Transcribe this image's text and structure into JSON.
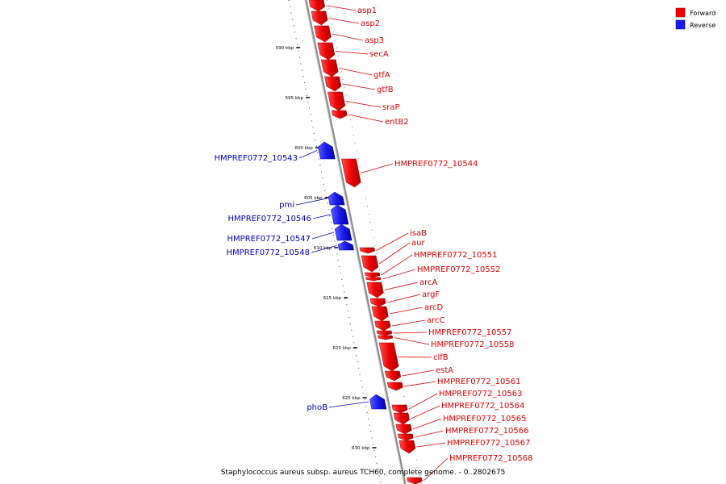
{
  "legend": {
    "forward_label": "Forward",
    "reverse_label": "Reverse",
    "forward_color": "#ee0000",
    "reverse_color": "#1a1aee"
  },
  "caption": "Staphylococcus aureus subsp. aureus TCH60, complete genome. - 0..2802675",
  "ticks": [
    "590 kbp",
    "595 kbp",
    "600 kbp",
    "605 kbp",
    "610 kbp",
    "615 kbp",
    "620 kbp",
    "625 kbp",
    "630 kbp"
  ],
  "genes": [
    {
      "name": "asp1",
      "strand": "forward"
    },
    {
      "name": "asp2",
      "strand": "forward"
    },
    {
      "name": "asp3",
      "strand": "forward"
    },
    {
      "name": "secA",
      "strand": "forward"
    },
    {
      "name": "gtfA",
      "strand": "forward"
    },
    {
      "name": "gtfB",
      "strand": "forward"
    },
    {
      "name": "sraP",
      "strand": "forward"
    },
    {
      "name": "entB2",
      "strand": "forward"
    },
    {
      "name": "HMPREF0772_10543",
      "strand": "reverse"
    },
    {
      "name": "HMPREF0772_10544",
      "strand": "forward"
    },
    {
      "name": "pmi",
      "strand": "reverse"
    },
    {
      "name": "HMPREF0772_10546",
      "strand": "reverse"
    },
    {
      "name": "HMPREF0772_10547",
      "strand": "reverse"
    },
    {
      "name": "HMPREF0772_10548",
      "strand": "reverse"
    },
    {
      "name": "isaB",
      "strand": "forward"
    },
    {
      "name": "aur",
      "strand": "forward"
    },
    {
      "name": "HMPREF0772_10551",
      "strand": "forward"
    },
    {
      "name": "HMPREF0772_10552",
      "strand": "forward"
    },
    {
      "name": "arcA",
      "strand": "forward"
    },
    {
      "name": "argF",
      "strand": "forward"
    },
    {
      "name": "arcD",
      "strand": "forward"
    },
    {
      "name": "arcC",
      "strand": "forward"
    },
    {
      "name": "HMPREF0772_10557",
      "strand": "forward"
    },
    {
      "name": "HMPREF0772_10558",
      "strand": "forward"
    },
    {
      "name": "clfB",
      "strand": "forward"
    },
    {
      "name": "estA",
      "strand": "forward"
    },
    {
      "name": "HMPREF0772_10561",
      "strand": "forward"
    },
    {
      "name": "HMPREF0772_10563",
      "strand": "forward"
    },
    {
      "name": "phoB",
      "strand": "reverse"
    },
    {
      "name": "HMPREF0772_10564",
      "strand": "forward"
    },
    {
      "name": "HMPREF0772_10565",
      "strand": "forward"
    },
    {
      "name": "HMPREF0772_10566",
      "strand": "forward"
    },
    {
      "name": "HMPREF0772_10567",
      "strand": "forward"
    },
    {
      "name": "HMPREF0772_10568",
      "strand": "forward"
    }
  ]
}
